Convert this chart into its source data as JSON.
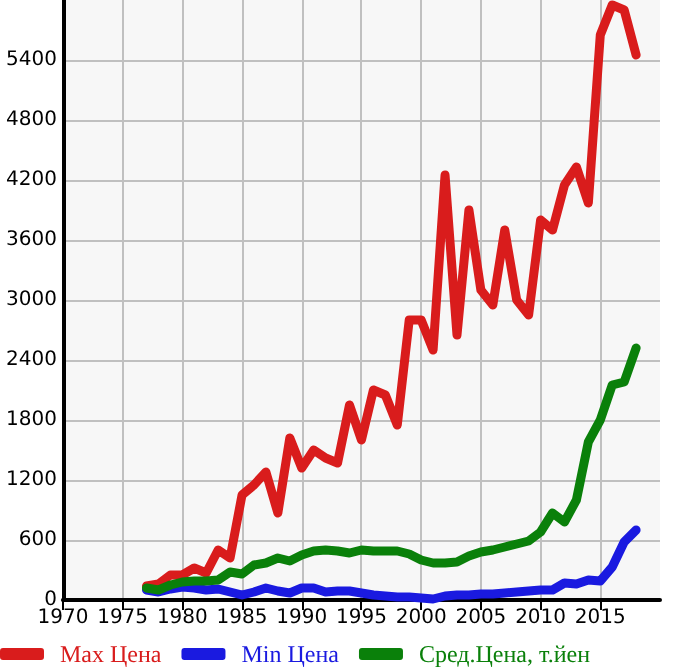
{
  "chart_data": {
    "type": "line",
    "x": [
      1977,
      1978,
      1979,
      1980,
      1981,
      1982,
      1983,
      1984,
      1985,
      1986,
      1987,
      1988,
      1989,
      1990,
      1991,
      1992,
      1993,
      1994,
      1995,
      1996,
      1997,
      1998,
      1999,
      2000,
      2001,
      2002,
      2003,
      2004,
      2005,
      2006,
      2007,
      2008,
      2009,
      2010,
      2011,
      2012,
      2013,
      2014,
      2015,
      2016,
      2017,
      2018
    ],
    "series": [
      {
        "name": "Max Цена",
        "color": "#d91c1c",
        "values": [
          140,
          160,
          250,
          250,
          320,
          270,
          500,
          420,
          1050,
          1150,
          1280,
          870,
          1620,
          1320,
          1500,
          1420,
          1370,
          1950,
          1600,
          2100,
          2050,
          1750,
          2800,
          2800,
          2500,
          4250,
          2650,
          3900,
          3100,
          2950,
          3700,
          3000,
          2850,
          3800,
          3700,
          4150,
          4330,
          3970,
          5650,
          5950,
          5900,
          5450
        ]
      },
      {
        "name": "Min Цена",
        "color": "#1a1ae0",
        "values": [
          100,
          80,
          110,
          130,
          120,
          100,
          110,
          80,
          50,
          80,
          120,
          90,
          70,
          120,
          120,
          80,
          90,
          90,
          70,
          50,
          40,
          30,
          30,
          20,
          10,
          40,
          50,
          50,
          60,
          60,
          70,
          80,
          90,
          100,
          100,
          170,
          160,
          200,
          190,
          330,
          580,
          700
        ]
      },
      {
        "name": "Сред.Цена, т.йен",
        "color": "#0a800a",
        "values": [
          120,
          100,
          150,
          180,
          190,
          190,
          200,
          280,
          260,
          350,
          370,
          420,
          390,
          450,
          490,
          500,
          490,
          470,
          500,
          490,
          490,
          490,
          460,
          400,
          370,
          370,
          380,
          440,
          480,
          500,
          530,
          560,
          590,
          680,
          870,
          780,
          1000,
          1580,
          1800,
          2150,
          2180,
          2520
        ]
      }
    ],
    "xlim": [
      1970,
      2020
    ],
    "xticks": [
      1970,
      1975,
      1980,
      1985,
      1990,
      1995,
      2000,
      2005,
      2010,
      2015
    ],
    "ylim": [
      0,
      6000
    ],
    "yticks": [
      0,
      600,
      1200,
      1800,
      2400,
      3000,
      3600,
      4200,
      4800,
      5400
    ],
    "grid": true,
    "legend": "bottom",
    "marker": "none",
    "line_style": "solid"
  }
}
